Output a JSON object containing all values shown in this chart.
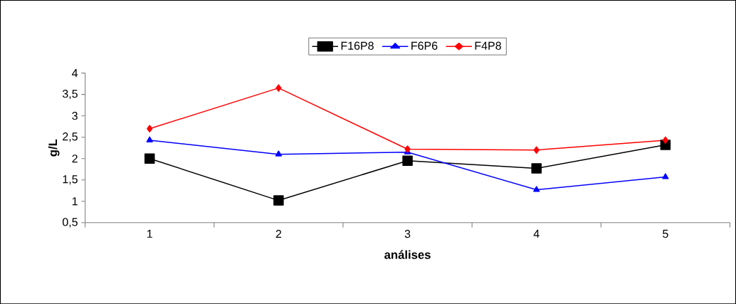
{
  "chart_data": {
    "type": "line",
    "xlabel": "análises",
    "ylabel": "g/L",
    "categories": [
      "1",
      "2",
      "3",
      "4",
      "5"
    ],
    "ylim": [
      0.5,
      4
    ],
    "yticks": [
      {
        "value": 0.5,
        "label": "0,5"
      },
      {
        "value": 1,
        "label": "1"
      },
      {
        "value": 1.5,
        "label": "1,5"
      },
      {
        "value": 2,
        "label": "2"
      },
      {
        "value": 2.5,
        "label": "2,5"
      },
      {
        "value": 3,
        "label": "3"
      },
      {
        "value": 3.5,
        "label": "3,5"
      },
      {
        "value": 4,
        "label": "4"
      }
    ],
    "grid": false,
    "legend": "top",
    "line_style": "solid",
    "series": [
      {
        "name": "F16P8",
        "color": "#000000",
        "marker": "square",
        "values": [
          2.0,
          1.02,
          1.95,
          1.77,
          2.32
        ]
      },
      {
        "name": "F6P6",
        "color": "#0000ff",
        "marker": "triangle",
        "values": [
          2.43,
          2.1,
          2.15,
          1.27,
          1.57
        ]
      },
      {
        "name": "F4P8",
        "color": "#ff0000",
        "marker": "diamond",
        "values": [
          2.7,
          3.65,
          2.22,
          2.2,
          2.43
        ]
      }
    ]
  }
}
